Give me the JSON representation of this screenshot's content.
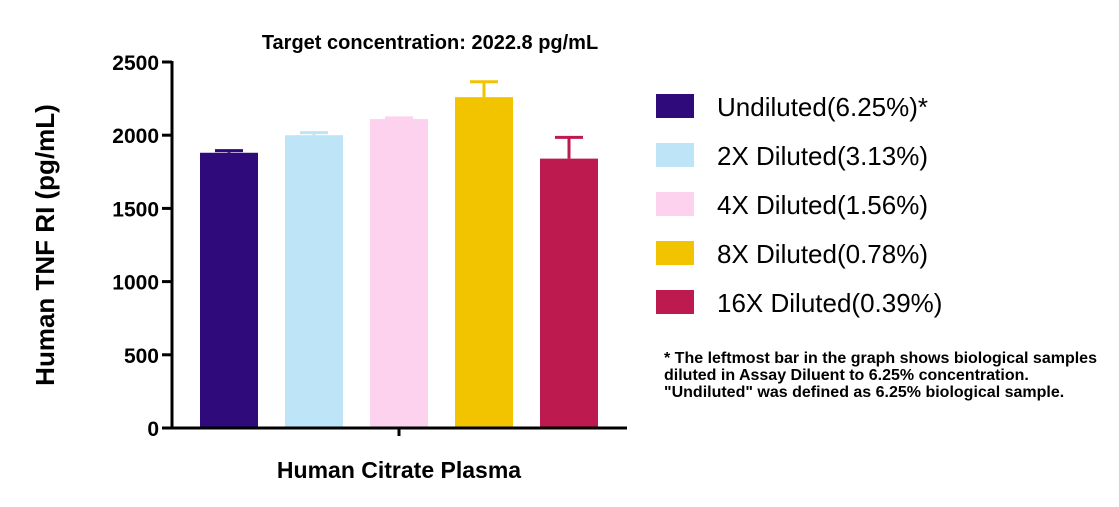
{
  "chart_data": {
    "type": "bar",
    "title": "Target concentration: 2022.8 pg/mL",
    "xlabel": "Human Citrate Plasma",
    "ylabel": "Human TNF RI (pg/mL)",
    "ylim": [
      0,
      2500
    ],
    "yticks": [
      0,
      500,
      1000,
      1500,
      2000,
      2500
    ],
    "grid": false,
    "legend_position": "right",
    "series": [
      {
        "name": "Undiluted(6.25%)*",
        "value": 1880,
        "error": 15,
        "color": "#2e0a7a"
      },
      {
        "name": "2X Diluted(3.13%)",
        "value": 2000,
        "error": 18,
        "color": "#bde4f7"
      },
      {
        "name": "4X Diluted(1.56%)",
        "value": 2110,
        "error": 8,
        "color": "#fcd2ee"
      },
      {
        "name": "8X Diluted(0.78%)",
        "value": 2260,
        "error": 105,
        "color": "#f2c400"
      },
      {
        "name": "16X Diluted(0.39%)",
        "value": 1840,
        "error": 145,
        "color": "#bd1a4f"
      }
    ]
  },
  "footnote": "* The leftmost bar in the graph shows biological samples diluted in Assay Diluent to 6.25% concentration. \"Undiluted\" was defined as 6.25% biological sample."
}
